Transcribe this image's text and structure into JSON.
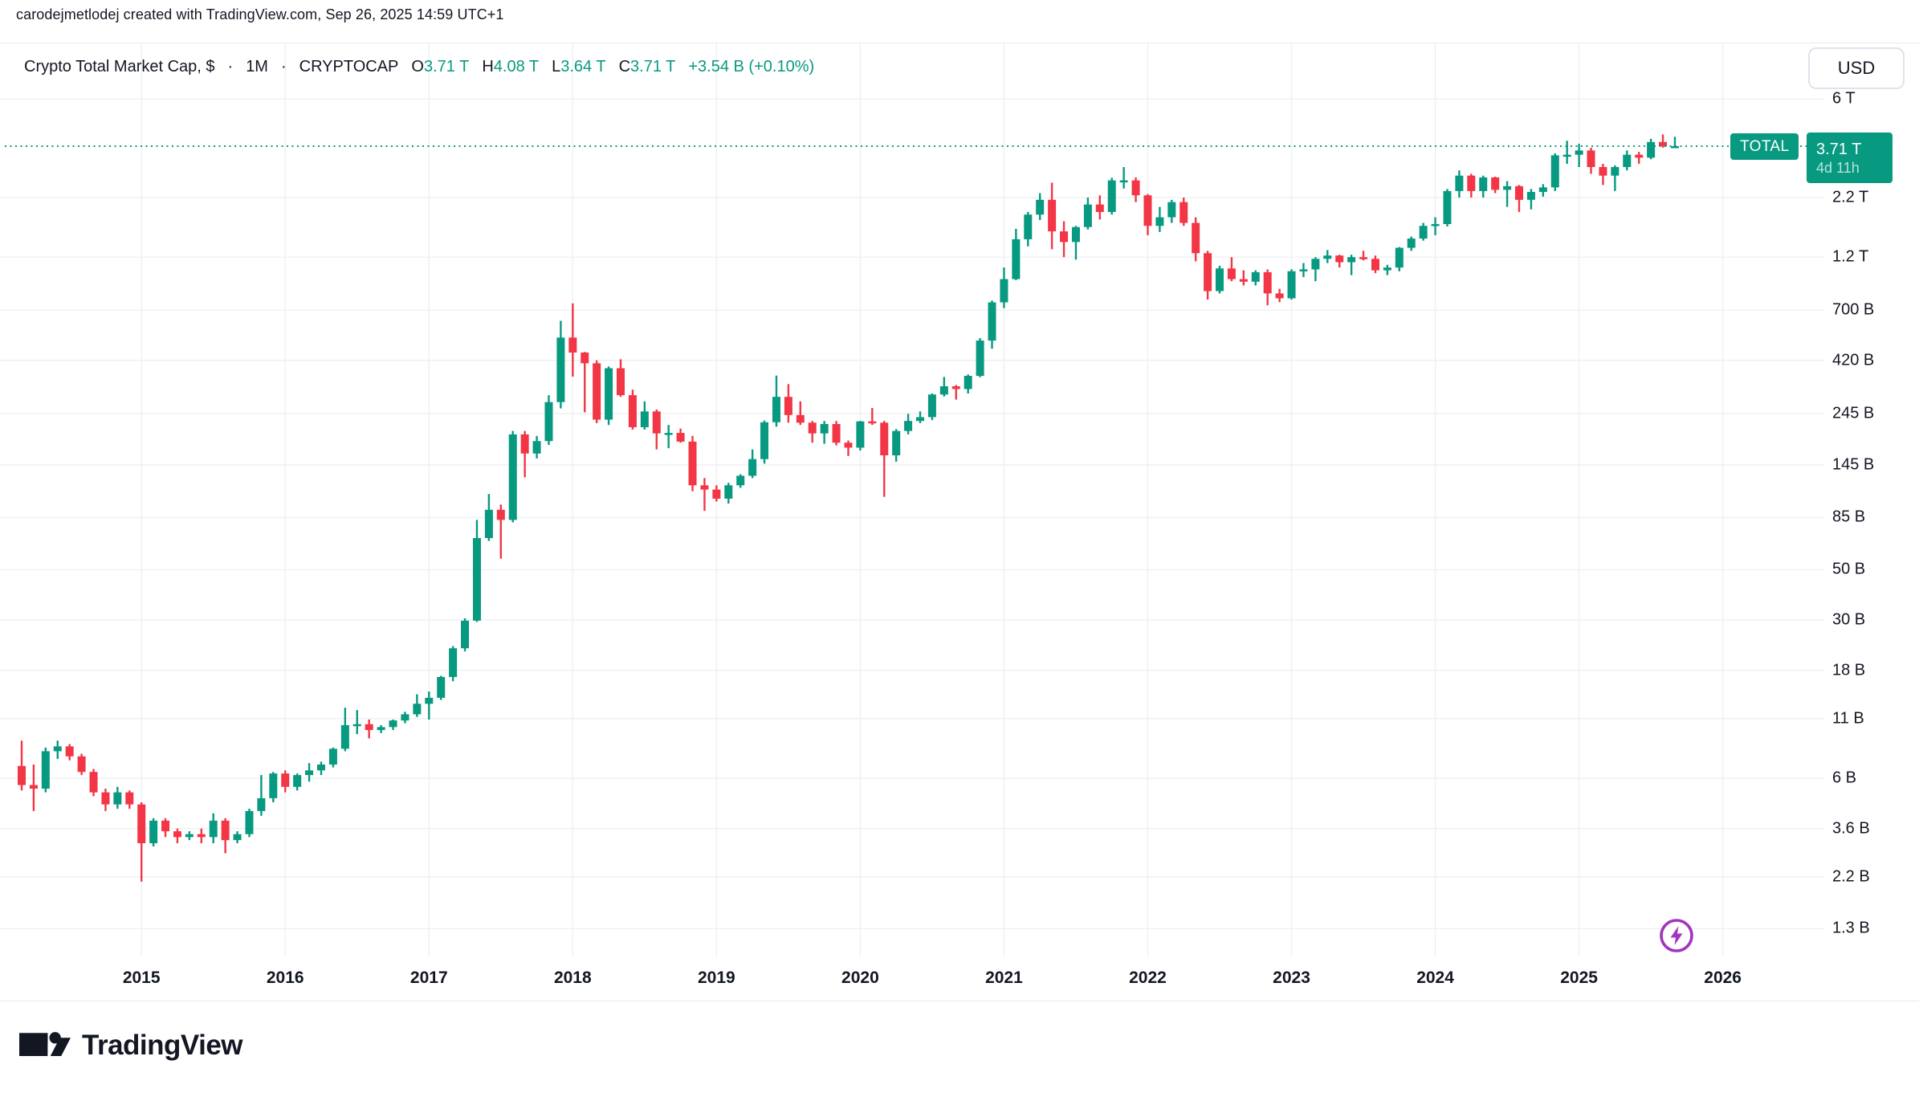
{
  "header": {
    "attribution": "carodejmetlodej created with TradingView.com, Sep 26, 2025 14:59 UTC+1"
  },
  "legend": {
    "symbol": "Crypto Total Market Cap, $",
    "separator": "·",
    "interval": "1M",
    "exchange": "CRYPTOCAP",
    "o_label": "O",
    "o_value": "3.71 T",
    "h_label": "H",
    "h_value": "4.08 T",
    "l_label": "L",
    "l_value": "3.64 T",
    "c_label": "C",
    "c_value": "3.71 T",
    "change": "+3.54 B (+0.10%)"
  },
  "price_scale": {
    "currency": "USD"
  },
  "price_line": {
    "symbol_label": "TOTAL",
    "price": "3.71 T",
    "countdown": "4d 11h"
  },
  "footer": {
    "brand": "TradingView"
  },
  "colors": {
    "up": "#089981",
    "down": "#F23645",
    "price_line": "#089981",
    "grid": "#EEF1F5",
    "text": "#131722",
    "border": "#E9EBEF",
    "flash_purple": "#A433BF"
  },
  "chart_data": {
    "type": "candlestick",
    "title": "Crypto Total Market Cap",
    "symbol": "CRYPTOCAP:TOTAL",
    "interval": "1M",
    "currency": "USD",
    "unit": "billions of USD",
    "log_scale": true,
    "legend_position": "top-left",
    "grid": true,
    "price_line_value_b": 3710,
    "ylim_b": [
      1300,
      6000
    ],
    "y_ticks": [
      {
        "v": 6000,
        "label": "6 T"
      },
      {
        "v": 2200,
        "label": "2.2 T"
      },
      {
        "v": 1200,
        "label": "1.2 T"
      },
      {
        "v": 700,
        "label": "700 B"
      },
      {
        "v": 420,
        "label": "420 B"
      },
      {
        "v": 245,
        "label": "245 B"
      },
      {
        "v": 145,
        "label": "145 B"
      },
      {
        "v": 85,
        "label": "85 B"
      },
      {
        "v": 50,
        "label": "50 B"
      },
      {
        "v": 30,
        "label": "30 B"
      },
      {
        "v": 18,
        "label": "18 B"
      },
      {
        "v": 11,
        "label": "11 B"
      },
      {
        "v": 6,
        "label": "6 B"
      },
      {
        "v": 3.6,
        "label": "3.6 B"
      },
      {
        "v": 2.2,
        "label": "2.2 B"
      },
      {
        "v": 1.3,
        "label": "1.3 B"
      }
    ],
    "x_ticks": [
      "2015",
      "2016",
      "2017",
      "2018",
      "2019",
      "2020",
      "2021",
      "2022",
      "2023",
      "2024",
      "2025",
      "2026"
    ],
    "series_format": [
      "month",
      "open_b",
      "high_b",
      "low_b",
      "close_b"
    ],
    "series": [
      [
        "2014-03",
        6.8,
        8.8,
        5.3,
        5.6
      ],
      [
        "2014-04",
        5.6,
        6.9,
        4.3,
        5.4
      ],
      [
        "2014-05",
        5.4,
        8.2,
        5.2,
        7.9
      ],
      [
        "2014-06",
        7.9,
        8.8,
        7.3,
        8.3
      ],
      [
        "2014-07",
        8.3,
        8.5,
        7.2,
        7.5
      ],
      [
        "2014-08",
        7.5,
        7.7,
        6.2,
        6.4
      ],
      [
        "2014-09",
        6.4,
        6.6,
        5.0,
        5.2
      ],
      [
        "2014-10",
        5.2,
        5.4,
        4.3,
        4.6
      ],
      [
        "2014-11",
        4.6,
        5.5,
        4.4,
        5.2
      ],
      [
        "2014-12",
        5.2,
        5.3,
        4.4,
        4.6
      ],
      [
        "2015-01",
        4.6,
        4.7,
        2.1,
        3.1
      ],
      [
        "2015-02",
        3.1,
        4.0,
        3.0,
        3.9
      ],
      [
        "2015-03",
        3.9,
        4.0,
        3.3,
        3.5
      ],
      [
        "2015-04",
        3.5,
        3.6,
        3.1,
        3.3
      ],
      [
        "2015-05",
        3.3,
        3.5,
        3.2,
        3.4
      ],
      [
        "2015-06",
        3.4,
        3.6,
        3.1,
        3.3
      ],
      [
        "2015-07",
        3.3,
        4.2,
        3.1,
        3.9
      ],
      [
        "2015-08",
        3.9,
        4.0,
        2.8,
        3.2
      ],
      [
        "2015-09",
        3.2,
        3.5,
        3.1,
        3.4
      ],
      [
        "2015-10",
        3.4,
        4.4,
        3.3,
        4.3
      ],
      [
        "2015-11",
        4.3,
        6.2,
        4.1,
        4.9
      ],
      [
        "2015-12",
        4.9,
        6.4,
        4.7,
        6.3
      ],
      [
        "2016-01",
        6.3,
        6.5,
        5.2,
        5.5
      ],
      [
        "2016-02",
        5.5,
        6.3,
        5.3,
        6.2
      ],
      [
        "2016-03",
        6.2,
        7.0,
        5.8,
        6.5
      ],
      [
        "2016-04",
        6.5,
        7.1,
        6.2,
        6.9
      ],
      [
        "2016-05",
        6.9,
        8.2,
        6.7,
        8.1
      ],
      [
        "2016-06",
        8.1,
        12.3,
        7.9,
        10.3
      ],
      [
        "2016-07",
        10.3,
        12.0,
        9.4,
        10.4
      ],
      [
        "2016-08",
        10.4,
        10.9,
        9.0,
        9.8
      ],
      [
        "2016-09",
        9.8,
        10.3,
        9.5,
        10.1
      ],
      [
        "2016-10",
        10.1,
        10.9,
        9.8,
        10.8
      ],
      [
        "2016-11",
        10.8,
        11.8,
        10.5,
        11.5
      ],
      [
        "2016-12",
        11.5,
        14.1,
        11.2,
        12.8
      ],
      [
        "2017-01",
        12.8,
        14.5,
        10.9,
        13.6
      ],
      [
        "2017-02",
        13.6,
        17.0,
        13.3,
        16.8
      ],
      [
        "2017-03",
        16.8,
        23.0,
        16.1,
        22.5
      ],
      [
        "2017-04",
        22.5,
        30.5,
        21.8,
        29.8
      ],
      [
        "2017-05",
        29.8,
        83.0,
        29.4,
        69.0
      ],
      [
        "2017-06",
        69.0,
        108.0,
        67.0,
        92.0
      ],
      [
        "2017-07",
        92.0,
        97.0,
        56.0,
        83.0
      ],
      [
        "2017-08",
        83.0,
        205.0,
        81.0,
        198.0
      ],
      [
        "2017-09",
        198.0,
        205.0,
        128.0,
        163.0
      ],
      [
        "2017-10",
        163.0,
        195.0,
        155.0,
        185.0
      ],
      [
        "2017-11",
        185.0,
        295.0,
        178.0,
        275.0
      ],
      [
        "2017-12",
        275.0,
        628.0,
        258.0,
        530.0
      ],
      [
        "2018-01",
        530.0,
        750.0,
        356.0,
        455.0
      ],
      [
        "2018-02",
        455.0,
        458.0,
        248.0,
        408.0
      ],
      [
        "2018-03",
        408.0,
        420.0,
        222.0,
        230.0
      ],
      [
        "2018-04",
        230.0,
        395.0,
        218.0,
        388.0
      ],
      [
        "2018-05",
        388.0,
        425.0,
        290.0,
        295.0
      ],
      [
        "2018-06",
        295.0,
        312.0,
        208.0,
        213.0
      ],
      [
        "2018-07",
        213.0,
        277.0,
        208.0,
        250.0
      ],
      [
        "2018-08",
        250.0,
        255.0,
        170.0,
        200.0
      ],
      [
        "2018-09",
        200.0,
        218.0,
        172.0,
        201.0
      ],
      [
        "2018-10",
        201.0,
        210.0,
        182.0,
        184.0
      ],
      [
        "2018-11",
        184.0,
        195.0,
        111.0,
        118.0
      ],
      [
        "2018-12",
        118.0,
        127.0,
        91.0,
        113.0
      ],
      [
        "2019-01",
        113.0,
        118.0,
        100.0,
        103.0
      ],
      [
        "2019-02",
        103.0,
        121.0,
        98.0,
        118.0
      ],
      [
        "2019-03",
        118.0,
        132.0,
        115.0,
        130.0
      ],
      [
        "2019-04",
        130.0,
        170.0,
        127.0,
        154.0
      ],
      [
        "2019-05",
        154.0,
        228.0,
        147.0,
        224.0
      ],
      [
        "2019-06",
        224.0,
        360.0,
        214.0,
        290.0
      ],
      [
        "2019-07",
        290.0,
        330.0,
        223.0,
        241.0
      ],
      [
        "2019-08",
        241.0,
        277.0,
        218.0,
        223.0
      ],
      [
        "2019-09",
        223.0,
        227.0,
        182.0,
        200.0
      ],
      [
        "2019-10",
        200.0,
        227.0,
        180.0,
        220.0
      ],
      [
        "2019-11",
        220.0,
        227.0,
        177.0,
        182.0
      ],
      [
        "2019-12",
        182.0,
        186.0,
        159.0,
        173.0
      ],
      [
        "2020-01",
        173.0,
        227.0,
        168.0,
        226.0
      ],
      [
        "2020-02",
        226.0,
        259.0,
        218.0,
        223.0
      ],
      [
        "2020-03",
        223.0,
        227.0,
        105.0,
        160.0
      ],
      [
        "2020-04",
        160.0,
        209.0,
        150.0,
        205.0
      ],
      [
        "2020-05",
        205.0,
        244.0,
        198.0,
        227.0
      ],
      [
        "2020-06",
        227.0,
        250.0,
        222.0,
        236.0
      ],
      [
        "2020-07",
        236.0,
        300.0,
        229.0,
        297.0
      ],
      [
        "2020-08",
        297.0,
        355.0,
        291.0,
        323.0
      ],
      [
        "2020-09",
        323.0,
        327.0,
        282.0,
        314.0
      ],
      [
        "2020-10",
        314.0,
        364.0,
        300.0,
        359.0
      ],
      [
        "2020-11",
        359.0,
        527.0,
        354.0,
        514.0
      ],
      [
        "2020-12",
        514.0,
        772.0,
        473.0,
        758.0
      ],
      [
        "2021-01",
        758.0,
        1080.0,
        715.0,
        960.0
      ],
      [
        "2021-02",
        960.0,
        1600.0,
        950.0,
        1440.0
      ],
      [
        "2021-03",
        1440.0,
        1900.0,
        1340.0,
        1850.0
      ],
      [
        "2021-04",
        1850.0,
        2300.0,
        1750.0,
        2150.0
      ],
      [
        "2021-05",
        2150.0,
        2560.0,
        1300.0,
        1560.0
      ],
      [
        "2021-06",
        1560.0,
        1730.0,
        1200.0,
        1400.0
      ],
      [
        "2021-07",
        1400.0,
        1650.0,
        1170.0,
        1630.0
      ],
      [
        "2021-08",
        1630.0,
        2200.0,
        1590.0,
        2050.0
      ],
      [
        "2021-09",
        2050.0,
        2250.0,
        1760.0,
        1900.0
      ],
      [
        "2021-10",
        1900.0,
        2690.0,
        1850.0,
        2620.0
      ],
      [
        "2021-11",
        2620.0,
        3000.0,
        2410.0,
        2620.0
      ],
      [
        "2021-12",
        2620.0,
        2700.0,
        2100.0,
        2250.0
      ],
      [
        "2022-01",
        2250.0,
        2280.0,
        1500.0,
        1650.0
      ],
      [
        "2022-02",
        1650.0,
        2000.0,
        1550.0,
        1800.0
      ],
      [
        "2022-03",
        1800.0,
        2150.0,
        1700.0,
        2100.0
      ],
      [
        "2022-04",
        2100.0,
        2200.0,
        1650.0,
        1700.0
      ],
      [
        "2022-05",
        1700.0,
        1800.0,
        1150.0,
        1250.0
      ],
      [
        "2022-06",
        1250.0,
        1280.0,
        780.0,
        850.0
      ],
      [
        "2022-07",
        850.0,
        1100.0,
        830.0,
        1070.0
      ],
      [
        "2022-08",
        1070.0,
        1200.0,
        940.0,
        960.0
      ],
      [
        "2022-09",
        960.0,
        1050.0,
        900.0,
        935.0
      ],
      [
        "2022-10",
        935.0,
        1050.0,
        900.0,
        1030.0
      ],
      [
        "2022-11",
        1030.0,
        1060.0,
        736.0,
        830.0
      ],
      [
        "2022-12",
        830.0,
        870.0,
        760.0,
        790.0
      ],
      [
        "2023-01",
        790.0,
        1060.0,
        780.0,
        1040.0
      ],
      [
        "2023-02",
        1040.0,
        1130.0,
        980.0,
        1060.0
      ],
      [
        "2023-03",
        1060.0,
        1200.0,
        940.0,
        1180.0
      ],
      [
        "2023-04",
        1180.0,
        1290.0,
        1130.0,
        1220.0
      ],
      [
        "2023-05",
        1220.0,
        1230.0,
        1080.0,
        1140.0
      ],
      [
        "2023-06",
        1140.0,
        1230.0,
        1000.0,
        1200.0
      ],
      [
        "2023-07",
        1200.0,
        1280.0,
        1160.0,
        1180.0
      ],
      [
        "2023-08",
        1180.0,
        1220.0,
        1020.0,
        1050.0
      ],
      [
        "2023-09",
        1050.0,
        1110.0,
        1000.0,
        1080.0
      ],
      [
        "2023-10",
        1080.0,
        1330.0,
        1040.0,
        1320.0
      ],
      [
        "2023-11",
        1320.0,
        1480.0,
        1280.0,
        1450.0
      ],
      [
        "2023-12",
        1450.0,
        1700.0,
        1420.0,
        1650.0
      ],
      [
        "2024-01",
        1650.0,
        1800.0,
        1500.0,
        1680.0
      ],
      [
        "2024-02",
        1680.0,
        2400.0,
        1640.0,
        2350.0
      ],
      [
        "2024-03",
        2350.0,
        2900.0,
        2200.0,
        2750.0
      ],
      [
        "2024-04",
        2750.0,
        2800.0,
        2200.0,
        2350.0
      ],
      [
        "2024-05",
        2350.0,
        2750.0,
        2200.0,
        2700.0
      ],
      [
        "2024-06",
        2700.0,
        2720.0,
        2300.0,
        2380.0
      ],
      [
        "2024-07",
        2380.0,
        2600.0,
        2000.0,
        2470.0
      ],
      [
        "2024-08",
        2470.0,
        2500.0,
        1900.0,
        2150.0
      ],
      [
        "2024-09",
        2150.0,
        2400.0,
        1950.0,
        2330.0
      ],
      [
        "2024-10",
        2330.0,
        2520.0,
        2220.0,
        2440.0
      ],
      [
        "2024-11",
        2440.0,
        3450.0,
        2350.0,
        3380.0
      ],
      [
        "2024-12",
        3380.0,
        3920.0,
        3100.0,
        3400.0
      ],
      [
        "2025-01",
        3400.0,
        3800.0,
        3000.0,
        3550.0
      ],
      [
        "2025-02",
        3550.0,
        3650.0,
        2800.0,
        3000.0
      ],
      [
        "2025-03",
        3000.0,
        3100.0,
        2500.0,
        2750.0
      ],
      [
        "2025-04",
        2750.0,
        3050.0,
        2350.0,
        3000.0
      ],
      [
        "2025-05",
        3000.0,
        3550.0,
        2900.0,
        3400.0
      ],
      [
        "2025-06",
        3400.0,
        3500.0,
        3100.0,
        3300.0
      ],
      [
        "2025-07",
        3300.0,
        4000.0,
        3250.0,
        3870.0
      ],
      [
        "2025-08",
        3870.0,
        4180.0,
        3650.0,
        3706.0
      ],
      [
        "2025-09",
        3706.0,
        4080.0,
        3640.0,
        3710.0
      ]
    ]
  }
}
